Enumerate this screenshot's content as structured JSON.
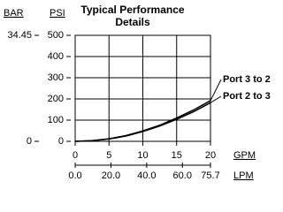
{
  "chart_data": {
    "type": "line",
    "title_lines": [
      "Typical Performance",
      "Details"
    ],
    "xlabel": "GPM",
    "x2label": "LPM",
    "ylabel": "PSI",
    "y2label": "BAR",
    "x": [
      0,
      2.5,
      5,
      7.5,
      10,
      12.5,
      15,
      17.5,
      20
    ],
    "series": [
      {
        "name": "Port 3 to 2",
        "color": "#000000",
        "values": [
          0,
          3,
          12,
          27,
          49,
          76,
          110,
          148,
          192
        ]
      },
      {
        "name": "Port 2 to 3",
        "color": "#000000",
        "values": [
          0,
          3,
          11,
          25,
          46,
          72,
          104,
          140,
          182
        ]
      }
    ],
    "xlim": [
      0,
      20
    ],
    "xticks": [
      0,
      5,
      10,
      15,
      20
    ],
    "x2lim": [
      0,
      75.7
    ],
    "x2ticks": [
      {
        "value": 0,
        "label": "0.0"
      },
      {
        "value": 20,
        "label": "20.0"
      },
      {
        "value": 40,
        "label": "40.0"
      },
      {
        "value": 60,
        "label": "60.0"
      },
      75.7
    ],
    "ylim": [
      0,
      500
    ],
    "yticks": [
      0,
      100,
      200,
      300,
      400,
      500
    ],
    "y2lim": [
      0,
      34.45
    ],
    "y2ticks": [
      0,
      34.45
    ],
    "grid": true
  }
}
